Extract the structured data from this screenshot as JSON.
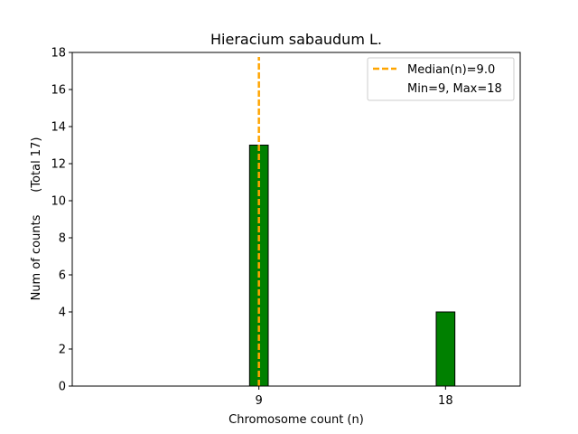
{
  "chart_data": {
    "type": "bar",
    "title": "Hieracium sabaudum L.",
    "xlabel": "Chromosome count (n)",
    "ylabel": "Num of counts      (Total 17)",
    "x": [
      9,
      18
    ],
    "values": [
      13,
      4
    ],
    "xticks": [
      "9",
      "18"
    ],
    "yticks": [
      "0",
      "2",
      "4",
      "6",
      "8",
      "10",
      "12",
      "14",
      "16",
      "18"
    ],
    "xlim": [
      0,
      21.6
    ],
    "ylim": [
      0,
      18
    ],
    "bar_color": "#008000",
    "median": {
      "value": 9.0,
      "color": "#ffa500"
    },
    "legend": {
      "placement": "upper right",
      "entries": [
        "Median(n)=9.0",
        "Min=9, Max=18"
      ]
    },
    "grid": false
  }
}
